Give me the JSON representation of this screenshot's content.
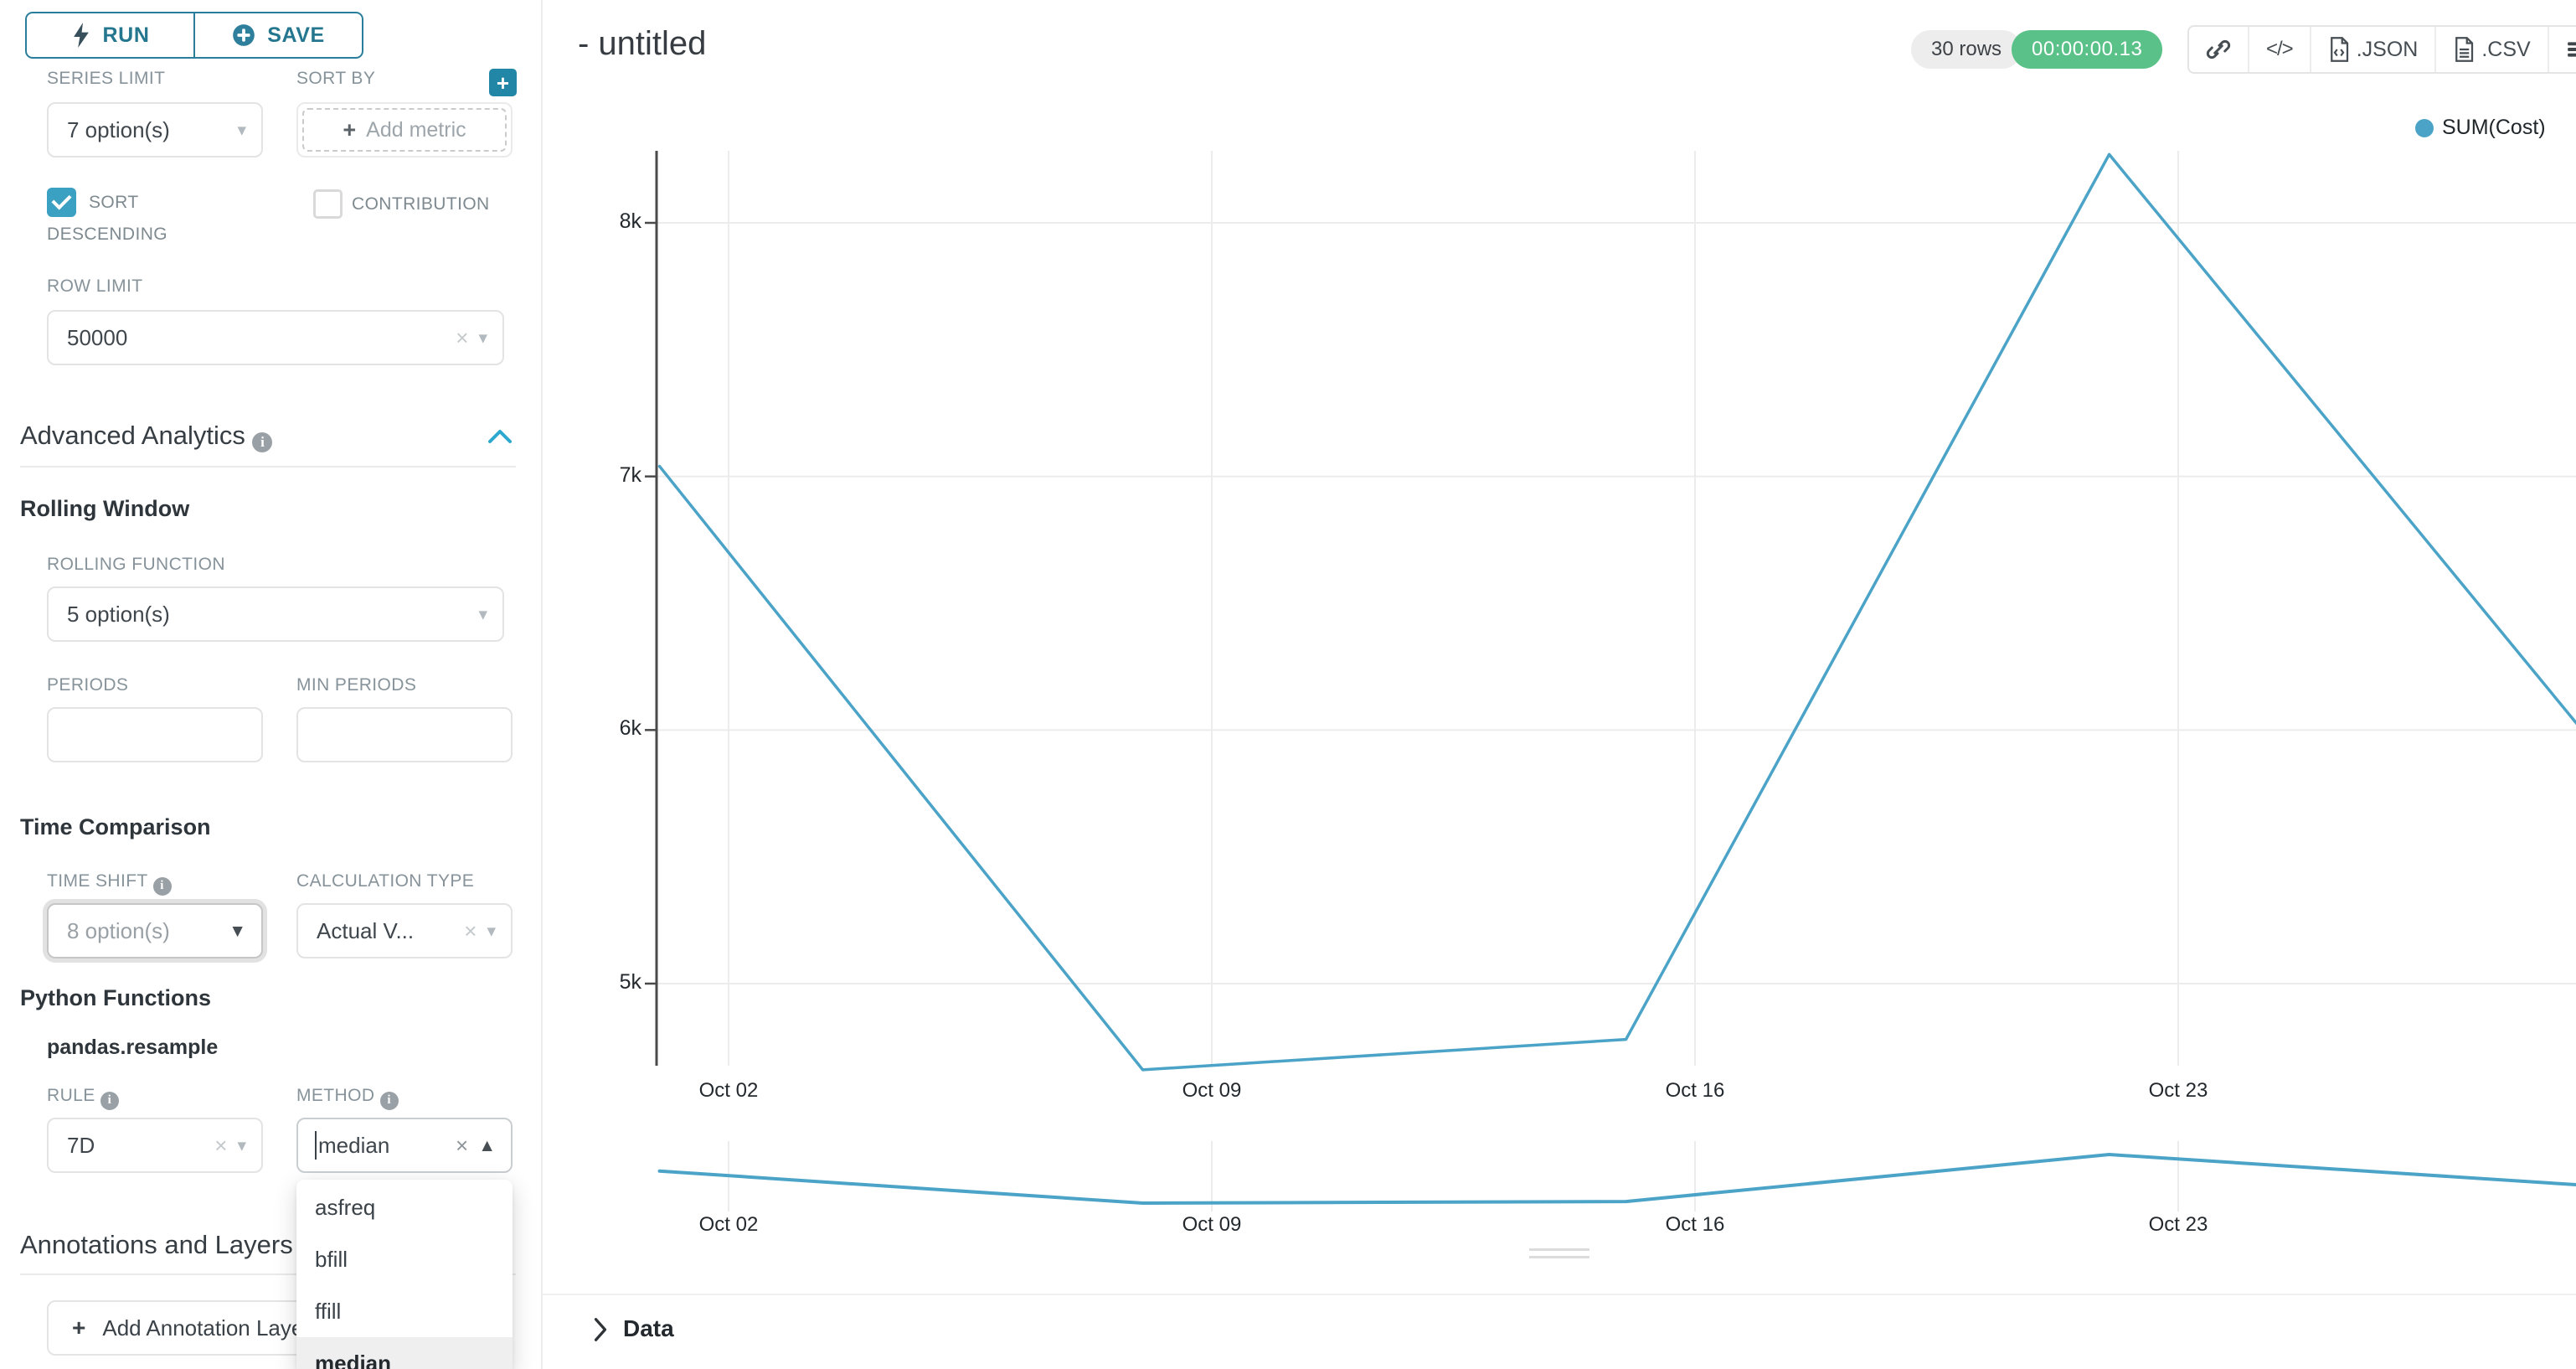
{
  "toolbar": {
    "run": "RUN",
    "save": "SAVE"
  },
  "sidebar": {
    "series_limit": {
      "label": "SERIES LIMIT",
      "value": "7 option(s)"
    },
    "sort_by": {
      "label": "SORT BY",
      "placeholder": "Add metric"
    },
    "sort_descending": {
      "label_line1": "SORT",
      "label_line2": "DESCENDING",
      "checked": true
    },
    "contribution": {
      "label": "CONTRIBUTION",
      "checked": false
    },
    "row_limit": {
      "label": "ROW LIMIT",
      "value": "50000"
    },
    "advanced_analytics_title": "Advanced Analytics",
    "rolling_window_title": "Rolling Window",
    "rolling_function": {
      "label": "ROLLING FUNCTION",
      "value": "5 option(s)"
    },
    "periods": {
      "label": "PERIODS",
      "value": ""
    },
    "min_periods": {
      "label": "MIN PERIODS",
      "value": ""
    },
    "time_comparison_title": "Time Comparison",
    "time_shift": {
      "label": "TIME SHIFT",
      "value": "8 option(s)"
    },
    "calculation_type": {
      "label": "CALCULATION TYPE",
      "value": "Actual V..."
    },
    "python_functions_title": "Python Functions",
    "python_function_name": "pandas.resample",
    "rule": {
      "label": "RULE",
      "value": "7D"
    },
    "method": {
      "label": "METHOD",
      "value": "median",
      "options": [
        "asfreq",
        "bfill",
        "ffill",
        "median"
      ],
      "highlighted": "median"
    },
    "annotations_title": "Annotations and Layers",
    "add_annotation_label": "Add Annotation Layer"
  },
  "header": {
    "title": "- untitled",
    "rows_badge": "30 rows",
    "timer": "00:00:00.13",
    "code_glyph": "</>",
    "export_json": ".JSON",
    "export_csv": ".CSV"
  },
  "data_panel": {
    "title": "Data"
  },
  "chart_data": {
    "type": "line",
    "title": "- untitled",
    "legend_position": "top-right",
    "grid": true,
    "x": [
      "Oct 01",
      "Oct 08",
      "Oct 15",
      "Oct 22",
      "Oct 29"
    ],
    "series": [
      {
        "name": "SUM(Cost)",
        "color": "#4BA3C7",
        "values": [
          7040,
          4660,
          4780,
          8270,
          5950
        ]
      }
    ],
    "x_tick_labels": [
      "Oct 02",
      "Oct 09",
      "Oct 16",
      "Oct 23"
    ],
    "y_ticks": {
      "labels": [
        "5k",
        "6k",
        "7k",
        "8k"
      ],
      "values": [
        5000,
        6000,
        7000,
        8000
      ]
    },
    "y_axis_visible_range": [
      4670,
      8280
    ],
    "x_axis_visible_range": [
      "Oct 01",
      "Oct 28"
    ],
    "preview_strip": true
  },
  "colors": {
    "primary": "#2A7E9B",
    "accent_blue": "#2CA8CE",
    "line": "#4BA3C7",
    "success_green": "#5AC189",
    "checkbox_teal": "#3BA1C2",
    "gridline": "#ececec",
    "axis": "#4a4a4a"
  }
}
